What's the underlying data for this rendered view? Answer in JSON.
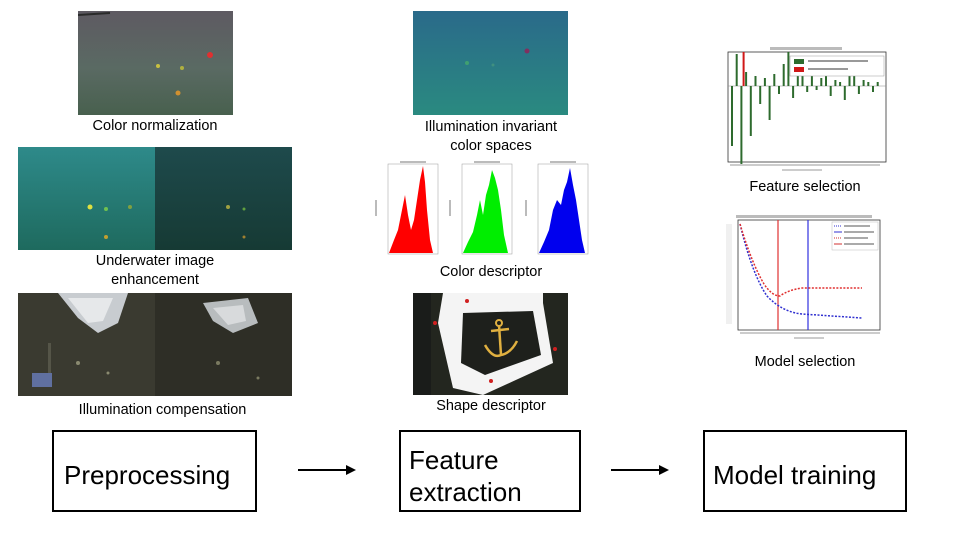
{
  "preprocessing": {
    "color_normalization": "Color normalization",
    "underwater_enhancement_line1": "Underwater image",
    "underwater_enhancement_line2": "enhancement",
    "illumination_compensation": "Illumination compensation"
  },
  "features": {
    "illumination_invariant_line1": "Illumination invariant",
    "illumination_invariant_line2": "color spaces",
    "color_descriptor": "Color descriptor",
    "shape_descriptor": "Shape descriptor"
  },
  "model": {
    "feature_selection": "Feature selection",
    "model_selection": "Model selection"
  },
  "pipeline": {
    "step1": "Preprocessing",
    "step2_line1": "Feature",
    "step2_line2": "extraction",
    "step3": "Model training"
  },
  "colors": {
    "histogram_red": "#ff0000",
    "histogram_green": "#00ee00",
    "histogram_blue": "#0000ee",
    "bar_green": "#2e6b2e",
    "bar_red": "#d01818"
  }
}
